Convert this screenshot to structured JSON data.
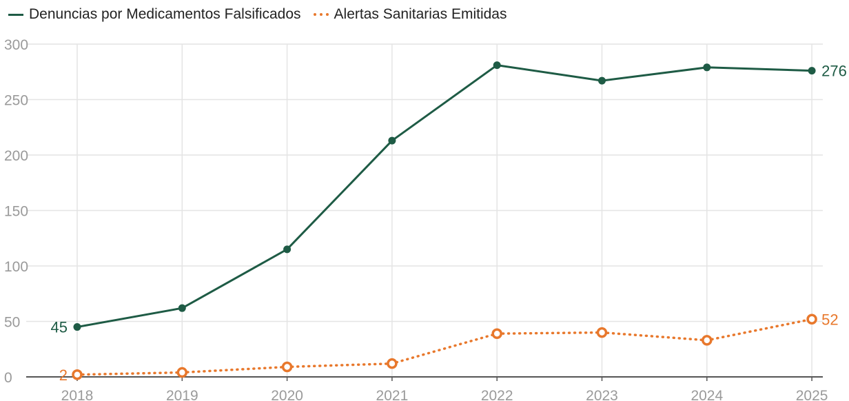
{
  "chart_data": {
    "type": "line",
    "categories": [
      "2018",
      "2019",
      "2020",
      "2021",
      "2022",
      "2023",
      "2024",
      "2025"
    ],
    "series": [
      {
        "name": "Denuncias por Medicamentos Falsificados",
        "values": [
          45,
          62,
          115,
          213,
          281,
          267,
          279,
          276
        ],
        "color": "#1e5b45",
        "style": "solid"
      },
      {
        "name": "Alertas Sanitarias Emitidas",
        "values": [
          2,
          4,
          9,
          12,
          39,
          40,
          33,
          52
        ],
        "color": "#e8782c",
        "style": "dotted"
      }
    ],
    "yticks": [
      "0",
      "50",
      "100",
      "150",
      "200",
      "250",
      "300"
    ],
    "ylim": [
      0,
      300
    ],
    "grid": true,
    "legend_position": "top-left",
    "data_labels": [
      {
        "series": 0,
        "point": 0,
        "text": "45"
      },
      {
        "series": 0,
        "point": 7,
        "text": "276"
      },
      {
        "series": 1,
        "point": 0,
        "text": "2"
      },
      {
        "series": 1,
        "point": 7,
        "text": "52"
      }
    ]
  }
}
